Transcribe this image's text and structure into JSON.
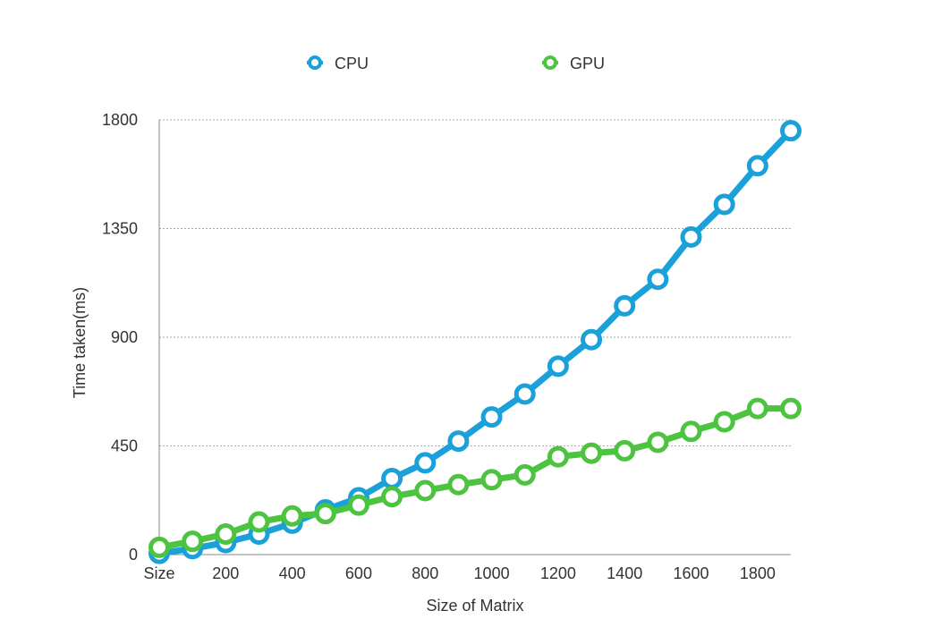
{
  "chart_data": {
    "type": "line",
    "title": "",
    "xlabel": "Size of Matrix",
    "ylabel": "Time taken(ms)",
    "x": [
      0,
      100,
      200,
      300,
      400,
      500,
      600,
      700,
      800,
      900,
      1000,
      1100,
      1200,
      1300,
      1400,
      1500,
      1600,
      1700,
      1800,
      1900
    ],
    "x_tick_labels": [
      {
        "x": 0,
        "label": "Size"
      },
      {
        "x": 200,
        "label": "200"
      },
      {
        "x": 400,
        "label": "400"
      },
      {
        "x": 600,
        "label": "600"
      },
      {
        "x": 800,
        "label": "800"
      },
      {
        "x": 1000,
        "label": "1000"
      },
      {
        "x": 1200,
        "label": "1200"
      },
      {
        "x": 1400,
        "label": "1400"
      },
      {
        "x": 1600,
        "label": "1600"
      },
      {
        "x": 1800,
        "label": "1800"
      }
    ],
    "y_ticks": [
      0,
      450,
      900,
      1350,
      1800
    ],
    "xlim": [
      0,
      1900
    ],
    "ylim": [
      0,
      1800
    ],
    "grid": true,
    "legend_position": "top",
    "series": [
      {
        "name": "CPU",
        "color": "#1ba1da",
        "values": [
          5,
          25,
          50,
          85,
          130,
          185,
          235,
          315,
          380,
          470,
          570,
          665,
          780,
          890,
          1030,
          1140,
          1315,
          1450,
          1610,
          1755
        ]
      },
      {
        "name": "GPU",
        "color": "#4cc440",
        "values": [
          30,
          55,
          85,
          135,
          160,
          170,
          205,
          240,
          265,
          290,
          310,
          330,
          405,
          420,
          430,
          465,
          510,
          550,
          605,
          605
        ]
      }
    ]
  }
}
